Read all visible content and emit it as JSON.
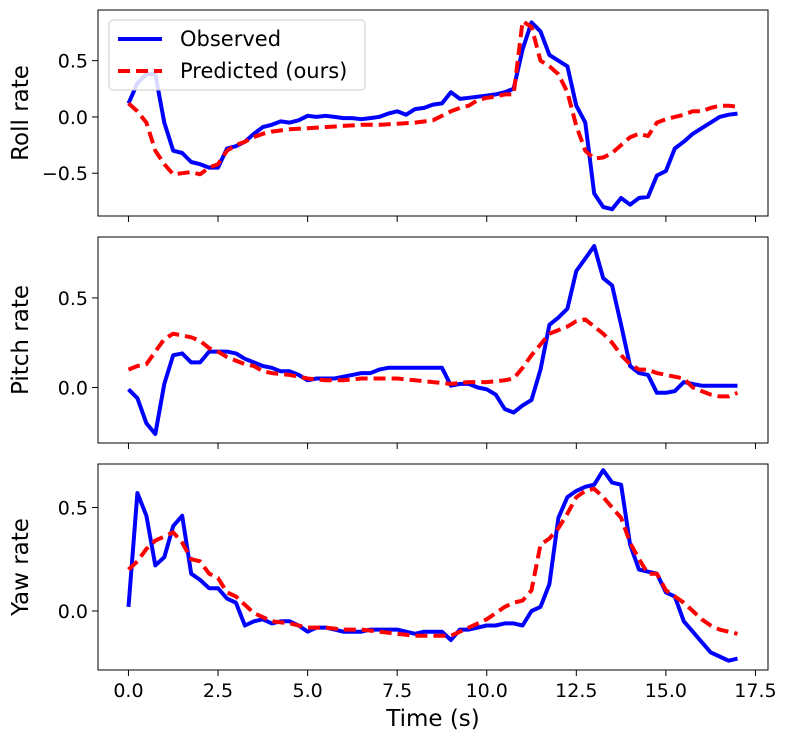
{
  "chart_data": {
    "type": "line",
    "xlabel": "Time (s)",
    "xlim": [
      -0.85,
      17.85
    ],
    "xticks": [
      0.0,
      2.5,
      5.0,
      7.5,
      10.0,
      12.5,
      15.0,
      17.5
    ],
    "xtick_labels": [
      "0.0",
      "2.5",
      "5.0",
      "7.5",
      "10.0",
      "12.5",
      "15.0",
      "17.5"
    ],
    "legend": {
      "location": "top-left of first panel",
      "entries": [
        {
          "name": "Observed",
          "color": "#0000ff",
          "style": "solid"
        },
        {
          "name": "Predicted (ours)",
          "color": "#ff0000",
          "style": "dashed"
        }
      ]
    },
    "series_styles": {
      "observed": {
        "color": "#0000ff",
        "dash": "none"
      },
      "predicted": {
        "color": "#ff0000",
        "dash": "dashed"
      }
    },
    "panels": [
      {
        "ylabel": "Roll rate",
        "ylim": [
          -0.88,
          0.95
        ],
        "yticks": [
          -0.5,
          0.0,
          0.5
        ],
        "ytick_labels": [
          "−0.5",
          "0.0",
          "0.5"
        ],
        "series": [
          {
            "name": "Observed",
            "x": [
              0,
              0.25,
              0.5,
              0.75,
              1.0,
              1.25,
              1.5,
              1.75,
              2.0,
              2.25,
              2.5,
              2.75,
              3.0,
              3.25,
              3.5,
              3.75,
              4.0,
              4.25,
              4.5,
              4.75,
              5.0,
              5.25,
              5.5,
              5.75,
              6.0,
              6.25,
              6.5,
              6.75,
              7.0,
              7.25,
              7.5,
              7.75,
              8.0,
              8.25,
              8.5,
              8.75,
              9.0,
              9.25,
              9.5,
              9.75,
              10.0,
              10.25,
              10.5,
              10.75,
              11.0,
              11.25,
              11.5,
              11.75,
              12.0,
              12.25,
              12.5,
              12.75,
              13.0,
              13.25,
              13.5,
              13.75,
              14.0,
              14.25,
              14.5,
              14.75,
              15.0,
              15.25,
              15.5,
              15.75,
              16.0,
              16.25,
              16.5,
              16.75,
              17.0
            ],
            "values": [
              0.12,
              0.3,
              0.38,
              0.38,
              -0.05,
              -0.3,
              -0.32,
              -0.4,
              -0.42,
              -0.45,
              -0.45,
              -0.28,
              -0.26,
              -0.22,
              -0.15,
              -0.09,
              -0.07,
              -0.04,
              -0.05,
              -0.03,
              0.01,
              0.0,
              0.01,
              0.0,
              -0.01,
              -0.01,
              -0.02,
              -0.01,
              0.0,
              0.03,
              0.05,
              0.02,
              0.07,
              0.08,
              0.11,
              0.12,
              0.22,
              0.16,
              0.17,
              0.18,
              0.19,
              0.2,
              0.22,
              0.25,
              0.6,
              0.84,
              0.76,
              0.55,
              0.5,
              0.45,
              0.1,
              -0.05,
              -0.68,
              -0.8,
              -0.82,
              -0.72,
              -0.78,
              -0.72,
              -0.71,
              -0.52,
              -0.48,
              -0.28,
              -0.22,
              -0.15,
              -0.1,
              -0.05,
              0.0,
              0.02,
              0.03
            ]
          },
          {
            "name": "Predicted (ours)",
            "x": [
              0,
              0.25,
              0.5,
              0.75,
              1.0,
              1.25,
              1.5,
              1.75,
              2.0,
              2.25,
              2.5,
              2.75,
              3.0,
              3.25,
              3.5,
              3.75,
              4.0,
              4.5,
              5.0,
              5.5,
              6.0,
              6.5,
              7.0,
              7.5,
              8.0,
              8.5,
              9.0,
              9.25,
              9.5,
              9.75,
              10.0,
              10.25,
              10.5,
              10.75,
              11.0,
              11.25,
              11.5,
              11.75,
              12.0,
              12.25,
              12.5,
              12.75,
              13.0,
              13.25,
              13.5,
              13.75,
              14.0,
              14.25,
              14.5,
              14.75,
              15.0,
              15.25,
              15.5,
              15.75,
              16.0,
              16.25,
              16.5,
              16.75,
              17.0
            ],
            "values": [
              0.12,
              0.05,
              -0.05,
              -0.3,
              -0.42,
              -0.51,
              -0.5,
              -0.49,
              -0.51,
              -0.45,
              -0.42,
              -0.3,
              -0.25,
              -0.22,
              -0.18,
              -0.15,
              -0.13,
              -0.11,
              -0.1,
              -0.09,
              -0.08,
              -0.07,
              -0.07,
              -0.06,
              -0.05,
              -0.03,
              0.05,
              0.08,
              0.1,
              0.15,
              0.17,
              0.18,
              0.2,
              0.2,
              0.85,
              0.8,
              0.5,
              0.45,
              0.38,
              0.22,
              -0.08,
              -0.3,
              -0.37,
              -0.36,
              -0.32,
              -0.25,
              -0.18,
              -0.15,
              -0.17,
              -0.05,
              -0.02,
              0.0,
              0.02,
              0.05,
              0.05,
              0.08,
              0.1,
              0.1,
              0.09
            ]
          }
        ]
      },
      {
        "ylabel": "Pitch rate",
        "ylim": [
          -0.31,
          0.84
        ],
        "yticks": [
          0.0,
          0.5
        ],
        "ytick_labels": [
          "0.0",
          "0.5"
        ],
        "series": [
          {
            "name": "Observed",
            "x": [
              0,
              0.25,
              0.5,
              0.75,
              1.0,
              1.25,
              1.5,
              1.75,
              2.0,
              2.25,
              2.5,
              2.75,
              3.0,
              3.25,
              3.5,
              3.75,
              4.0,
              4.25,
              4.5,
              4.75,
              5.0,
              5.25,
              5.5,
              5.75,
              6.0,
              6.25,
              6.5,
              6.75,
              7.0,
              7.25,
              7.5,
              7.75,
              8.0,
              8.25,
              8.5,
              8.75,
              9.0,
              9.25,
              9.5,
              9.75,
              10.0,
              10.25,
              10.5,
              10.75,
              11.0,
              11.25,
              11.5,
              11.75,
              12.0,
              12.25,
              12.5,
              12.75,
              13.0,
              13.25,
              13.5,
              13.75,
              14.0,
              14.25,
              14.5,
              14.75,
              15.0,
              15.25,
              15.5,
              15.75,
              16.0,
              16.25,
              16.5,
              16.75,
              17.0
            ],
            "values": [
              -0.01,
              -0.06,
              -0.2,
              -0.26,
              0.02,
              0.18,
              0.19,
              0.14,
              0.14,
              0.2,
              0.2,
              0.2,
              0.19,
              0.16,
              0.14,
              0.12,
              0.11,
              0.09,
              0.09,
              0.07,
              0.04,
              0.05,
              0.05,
              0.05,
              0.06,
              0.07,
              0.08,
              0.08,
              0.1,
              0.11,
              0.11,
              0.11,
              0.11,
              0.11,
              0.11,
              0.11,
              0.01,
              0.02,
              0.02,
              0.0,
              -0.01,
              -0.04,
              -0.12,
              -0.14,
              -0.1,
              -0.07,
              0.1,
              0.35,
              0.39,
              0.44,
              0.65,
              0.72,
              0.79,
              0.61,
              0.57,
              0.35,
              0.12,
              0.08,
              0.07,
              -0.03,
              -0.03,
              -0.02,
              0.03,
              0.02,
              0.01,
              0.01,
              0.01,
              0.01,
              0.01
            ]
          },
          {
            "name": "Predicted (ours)",
            "x": [
              0,
              0.25,
              0.5,
              0.75,
              1.0,
              1.25,
              1.5,
              1.75,
              2.0,
              2.25,
              2.5,
              2.75,
              3.0,
              3.25,
              3.5,
              3.75,
              4.0,
              4.5,
              5.0,
              5.5,
              6.0,
              6.5,
              7.0,
              7.5,
              8.0,
              8.5,
              9.0,
              9.5,
              10.0,
              10.5,
              10.75,
              11.0,
              11.25,
              11.5,
              11.75,
              12.0,
              12.25,
              12.5,
              12.75,
              13.0,
              13.25,
              13.5,
              13.75,
              14.0,
              14.25,
              14.5,
              14.75,
              15.0,
              15.25,
              15.5,
              15.75,
              16.0,
              16.25,
              16.5,
              16.75,
              17.0
            ],
            "values": [
              0.1,
              0.12,
              0.13,
              0.2,
              0.27,
              0.3,
              0.29,
              0.28,
              0.26,
              0.22,
              0.2,
              0.17,
              0.15,
              0.13,
              0.12,
              0.09,
              0.08,
              0.07,
              0.05,
              0.04,
              0.04,
              0.05,
              0.05,
              0.05,
              0.04,
              0.03,
              0.02,
              0.03,
              0.03,
              0.04,
              0.05,
              0.11,
              0.18,
              0.24,
              0.3,
              0.32,
              0.34,
              0.37,
              0.38,
              0.34,
              0.3,
              0.25,
              0.18,
              0.13,
              0.1,
              0.1,
              0.08,
              0.07,
              0.06,
              0.05,
              0.0,
              -0.02,
              -0.04,
              -0.05,
              -0.05,
              -0.03
            ]
          }
        ]
      },
      {
        "ylabel": "Yaw rate",
        "ylim": [
          -0.285,
          0.71
        ],
        "yticks": [
          0.0,
          0.5
        ],
        "ytick_labels": [
          "0.0",
          "0.5"
        ],
        "series": [
          {
            "name": "Observed",
            "x": [
              0,
              0.25,
              0.5,
              0.75,
              1.0,
              1.25,
              1.5,
              1.75,
              2.0,
              2.25,
              2.5,
              2.75,
              3.0,
              3.25,
              3.5,
              3.75,
              4.0,
              4.25,
              4.5,
              4.75,
              5.0,
              5.25,
              5.5,
              5.75,
              6.0,
              6.25,
              6.5,
              6.75,
              7.0,
              7.25,
              7.5,
              7.75,
              8.0,
              8.25,
              8.5,
              8.75,
              9.0,
              9.25,
              9.5,
              9.75,
              10.0,
              10.25,
              10.5,
              10.75,
              11.0,
              11.25,
              11.5,
              11.75,
              12.0,
              12.25,
              12.5,
              12.75,
              13.0,
              13.25,
              13.5,
              13.75,
              14.0,
              14.25,
              14.5,
              14.75,
              15.0,
              15.25,
              15.5,
              15.75,
              16.0,
              16.25,
              16.5,
              16.75,
              17.0
            ],
            "values": [
              0.02,
              0.57,
              0.46,
              0.22,
              0.26,
              0.41,
              0.46,
              0.18,
              0.15,
              0.11,
              0.11,
              0.06,
              0.04,
              -0.07,
              -0.05,
              -0.04,
              -0.06,
              -0.05,
              -0.05,
              -0.07,
              -0.1,
              -0.08,
              -0.08,
              -0.09,
              -0.1,
              -0.1,
              -0.1,
              -0.09,
              -0.09,
              -0.09,
              -0.09,
              -0.1,
              -0.11,
              -0.1,
              -0.1,
              -0.1,
              -0.14,
              -0.09,
              -0.09,
              -0.08,
              -0.07,
              -0.07,
              -0.06,
              -0.06,
              -0.07,
              0.0,
              0.02,
              0.13,
              0.45,
              0.55,
              0.58,
              0.6,
              0.61,
              0.68,
              0.62,
              0.61,
              0.32,
              0.2,
              0.19,
              0.18,
              0.09,
              0.07,
              -0.05,
              -0.1,
              -0.15,
              -0.2,
              -0.22,
              -0.24,
              -0.23
            ]
          },
          {
            "name": "Predicted (ours)",
            "x": [
              0,
              0.25,
              0.5,
              0.75,
              1.0,
              1.25,
              1.5,
              1.75,
              2.0,
              2.25,
              2.5,
              2.75,
              3.0,
              3.5,
              4.0,
              4.5,
              5.0,
              5.5,
              6.0,
              6.5,
              7.0,
              7.5,
              8.0,
              8.5,
              9.0,
              9.5,
              10.0,
              10.25,
              10.5,
              10.75,
              11.0,
              11.25,
              11.5,
              11.75,
              12.0,
              12.25,
              12.5,
              12.75,
              13.0,
              13.25,
              13.5,
              13.75,
              14.0,
              14.25,
              14.5,
              14.75,
              15.0,
              15.25,
              15.5,
              15.75,
              16.0,
              16.25,
              16.5,
              16.75,
              17.0
            ],
            "values": [
              0.2,
              0.24,
              0.3,
              0.34,
              0.36,
              0.38,
              0.33,
              0.25,
              0.24,
              0.18,
              0.16,
              0.09,
              0.07,
              -0.01,
              -0.05,
              -0.06,
              -0.08,
              -0.08,
              -0.09,
              -0.09,
              -0.1,
              -0.11,
              -0.12,
              -0.12,
              -0.12,
              -0.08,
              -0.04,
              -0.01,
              0.02,
              0.04,
              0.05,
              0.1,
              0.32,
              0.35,
              0.4,
              0.47,
              0.55,
              0.58,
              0.59,
              0.55,
              0.5,
              0.45,
              0.33,
              0.25,
              0.18,
              0.18,
              0.1,
              0.07,
              0.04,
              0.0,
              -0.04,
              -0.07,
              -0.09,
              -0.1,
              -0.11
            ]
          }
        ]
      }
    ]
  }
}
